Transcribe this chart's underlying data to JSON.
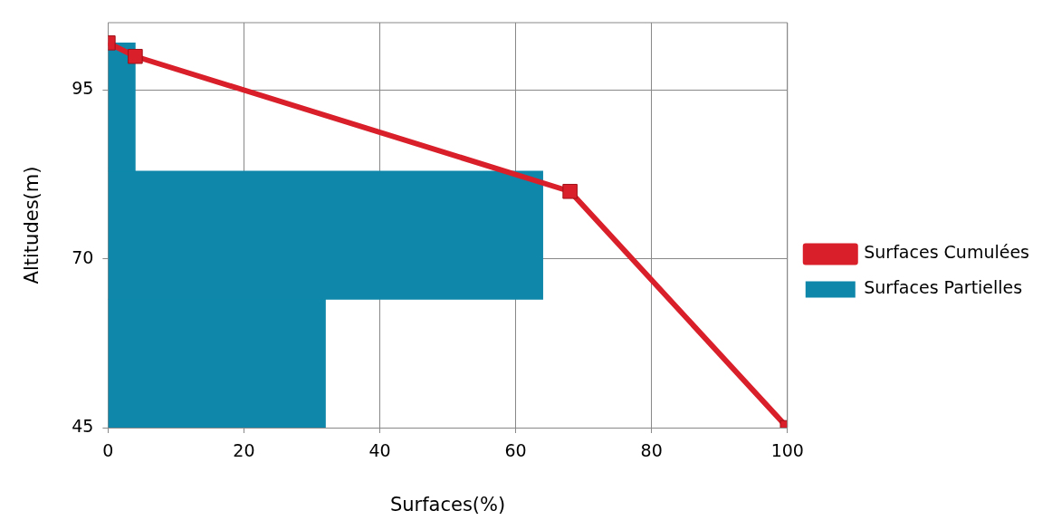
{
  "chart_data": {
    "type": "histogram",
    "orientation": "horizontal",
    "xlabel": "Surfaces(%)",
    "ylabel": "Altitudes(m)",
    "bins": [
      45,
      64,
      83,
      102
    ],
    "series": [
      {
        "name": "Surfaces Partielles",
        "color": "#0e87aa",
        "values": [
          32,
          64,
          4
        ]
      },
      {
        "name": "Surfaces Cumulées",
        "type": "line",
        "color": "#d9202a",
        "marker": "square",
        "x": [
          102,
          100,
          80,
          45
        ],
        "values": [
          0,
          4,
          68,
          100
        ]
      }
    ],
    "xlim": [
      0,
      100
    ],
    "xticks": [
      0,
      20,
      40,
      60,
      80,
      100
    ],
    "ylim": [
      45,
      105
    ],
    "yticks": [
      45,
      70,
      95
    ],
    "grid": true,
    "legend": "right"
  }
}
